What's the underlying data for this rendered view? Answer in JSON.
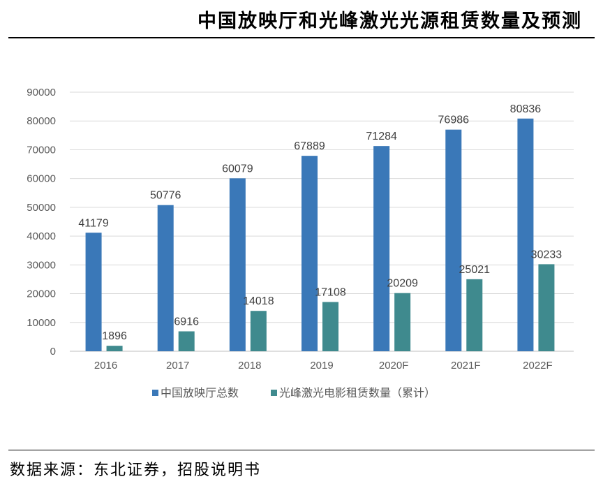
{
  "title": "中国放映厅和光峰激光光源租赁数量及预测",
  "source": "数据来源：东北证券，招股说明书",
  "chart_data": {
    "type": "bar",
    "categories": [
      "2016",
      "2017",
      "2018",
      "2019",
      "2020F",
      "2021F",
      "2022F"
    ],
    "series": [
      {
        "name": "中国放映厅总数",
        "color": "#3A78B8",
        "values": [
          41179,
          50776,
          60079,
          67889,
          71284,
          76986,
          80836
        ]
      },
      {
        "name": "光峰激光电影租赁数量（累计）",
        "color": "#3F8A8E",
        "values": [
          1896,
          6916,
          14018,
          17108,
          20209,
          25021,
          30233
        ]
      }
    ],
    "ylim": [
      0,
      90000
    ],
    "yticks": [
      "0",
      "10000",
      "20000",
      "30000",
      "40000",
      "50000",
      "60000",
      "70000",
      "80000",
      "90000"
    ],
    "grid": true,
    "legend": "bottom"
  }
}
